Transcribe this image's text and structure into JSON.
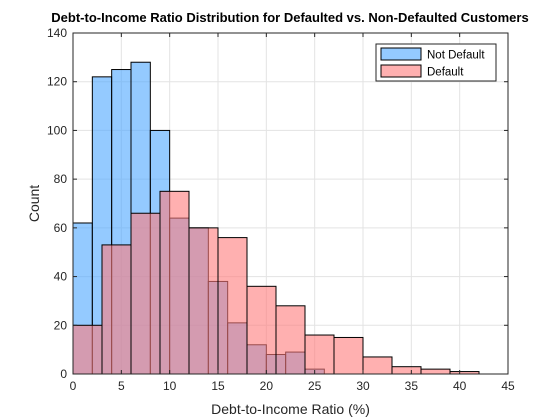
{
  "chart_data": {
    "type": "bar",
    "title": "Debt-to-Income Ratio Distribution for Defaulted vs. Non-Defaulted Customers",
    "xlabel": "Debt-to-Income Ratio (%)",
    "ylabel": "Count",
    "xlim": [
      0,
      45
    ],
    "ylim": [
      0,
      140
    ],
    "xticks": [
      0,
      5,
      10,
      15,
      20,
      25,
      30,
      35,
      40,
      45
    ],
    "yticks": [
      0,
      20,
      40,
      60,
      80,
      100,
      120,
      140
    ],
    "grid": true,
    "legend_position": "top-right",
    "series": [
      {
        "name": "Not Default",
        "color": "#4da6ff",
        "bin_edges": [
          0,
          2,
          4,
          6,
          8,
          10,
          12,
          14,
          16,
          18,
          20,
          22,
          24,
          26
        ],
        "counts": [
          62,
          122,
          125,
          128,
          100,
          64,
          60,
          38,
          21,
          12,
          8,
          9,
          2
        ]
      },
      {
        "name": "Default",
        "color": "#ff7b7b",
        "bin_edges": [
          0,
          3,
          6,
          9,
          12,
          15,
          18,
          21,
          24,
          27,
          30,
          33,
          36,
          39,
          42
        ],
        "counts": [
          20,
          53,
          66,
          75,
          60,
          56,
          36,
          28,
          16,
          15,
          7,
          3,
          2,
          1
        ]
      }
    ]
  }
}
